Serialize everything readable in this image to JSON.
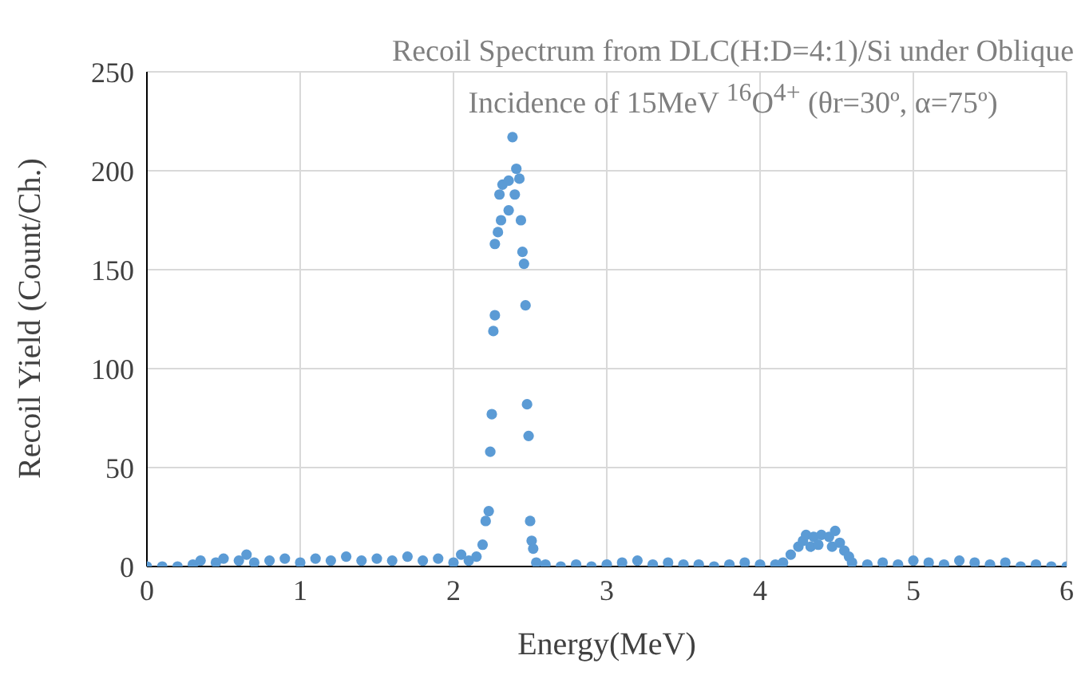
{
  "chart_data": {
    "type": "scatter",
    "title": "Recoil Spectrum from DLC(H:D=4:1)/Si under Oblique Incidence of 15MeV $^{16}$O$^{4+}$ (θr=30º, α=75º)",
    "xlabel": "Energy(MeV)",
    "ylabel": "Recoil Yield (Count/Ch.)",
    "xlim": [
      0,
      6
    ],
    "xticks": [
      0,
      1,
      2,
      3,
      4,
      5,
      6
    ],
    "ylim": [
      0,
      250
    ],
    "yticks": [
      0,
      50,
      100,
      150,
      200,
      250
    ],
    "grid": true,
    "marker": "circle",
    "series": [
      {
        "color": "#5b9bd5",
        "x": [
          0.0,
          0.1,
          0.2,
          0.3,
          0.35,
          0.45,
          0.5,
          0.6,
          0.65,
          0.7,
          0.8,
          0.9,
          1.0,
          1.1,
          1.2,
          1.3,
          1.4,
          1.5,
          1.6,
          1.7,
          1.8,
          1.9,
          2.0,
          2.05,
          2.1,
          2.15,
          2.19,
          2.21,
          2.23,
          2.24,
          2.25,
          2.26,
          2.27,
          2.27,
          2.29,
          2.3,
          2.31,
          2.32,
          2.36,
          2.36,
          2.385,
          2.4,
          2.41,
          2.43,
          2.44,
          2.45,
          2.46,
          2.47,
          2.48,
          2.49,
          2.5,
          2.51,
          2.52,
          2.54,
          2.6,
          2.7,
          2.8,
          2.9,
          3.0,
          3.1,
          3.2,
          3.3,
          3.4,
          3.5,
          3.6,
          3.7,
          3.8,
          3.9,
          4.0,
          4.1,
          4.15,
          4.2,
          4.25,
          4.28,
          4.3,
          4.33,
          4.35,
          4.38,
          4.4,
          4.45,
          4.47,
          4.49,
          4.52,
          4.55,
          4.58,
          4.6,
          4.7,
          4.8,
          4.9,
          5.0,
          5.1,
          5.2,
          5.3,
          5.4,
          5.5,
          5.6,
          5.7,
          5.8,
          5.9,
          6.0
        ],
        "values": [
          0,
          0,
          0,
          1,
          3,
          2,
          4,
          3,
          6,
          2,
          3,
          4,
          2,
          4,
          3,
          5,
          3,
          4,
          3,
          5,
          3,
          4,
          2,
          6,
          3,
          5,
          11,
          23,
          28,
          58,
          77,
          119,
          127,
          163,
          169,
          188,
          175,
          193,
          195,
          180,
          217,
          188,
          201,
          196,
          175,
          159,
          153,
          132,
          82,
          66,
          23,
          13,
          9,
          2,
          1,
          0,
          1,
          0,
          1,
          2,
          3,
          1,
          2,
          1,
          1,
          0,
          1,
          2,
          1,
          1,
          2,
          6,
          10,
          13,
          16,
          10,
          15,
          11,
          16,
          15,
          10,
          18,
          12,
          8,
          5,
          2,
          1,
          2,
          1,
          3,
          2,
          1,
          3,
          2,
          1,
          2,
          0,
          1,
          0,
          0
        ]
      }
    ]
  }
}
